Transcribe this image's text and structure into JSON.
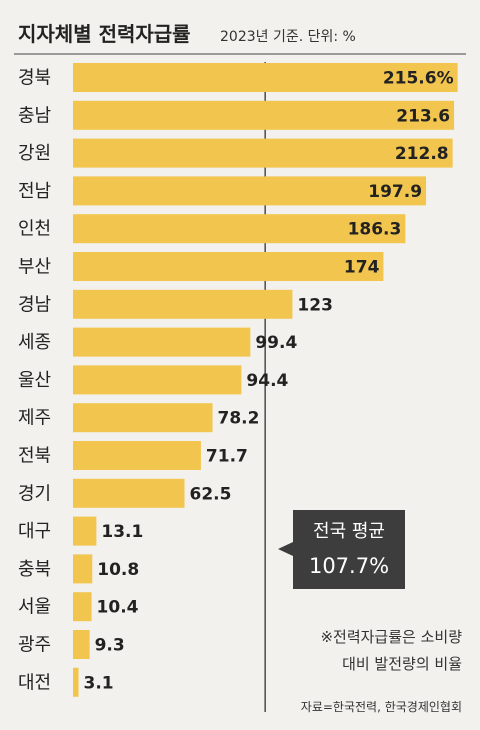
{
  "chart_data": {
    "type": "bar",
    "orientation": "horizontal",
    "title": "지자체별 전력자급률",
    "subtitle": "2023년 기준. 단위: %",
    "categories": [
      "경북",
      "충남",
      "강원",
      "전남",
      "인천",
      "부산",
      "경남",
      "세종",
      "울산",
      "제주",
      "전북",
      "경기",
      "대구",
      "충북",
      "서울",
      "광주",
      "대전"
    ],
    "values": [
      215.6,
      213.6,
      212.8,
      197.9,
      186.3,
      174,
      123,
      99.4,
      94.4,
      78.2,
      71.7,
      62.5,
      13.1,
      10.8,
      10.4,
      9.3,
      3.1
    ],
    "value_labels": [
      "215.6%",
      "213.6",
      "212.8",
      "197.9",
      "186.3",
      "174",
      "123",
      "99.4",
      "94.4",
      "78.2",
      "71.7",
      "62.5",
      "13.1",
      "10.8",
      "10.4",
      "9.3",
      "3.1"
    ],
    "reference": {
      "value": 107.7,
      "label": "전국 평균",
      "value_label": "107.7%"
    },
    "note_lines": [
      "※전력자급률은 소비량",
      "대비 발전량의 비율"
    ],
    "source": "자료=한국전력, 한국경제인협회",
    "xlim": [
      0,
      220
    ],
    "colors": {
      "bar": "#f1c54e",
      "background": "#f3f1ed",
      "callout": "#3d3d3d"
    }
  }
}
